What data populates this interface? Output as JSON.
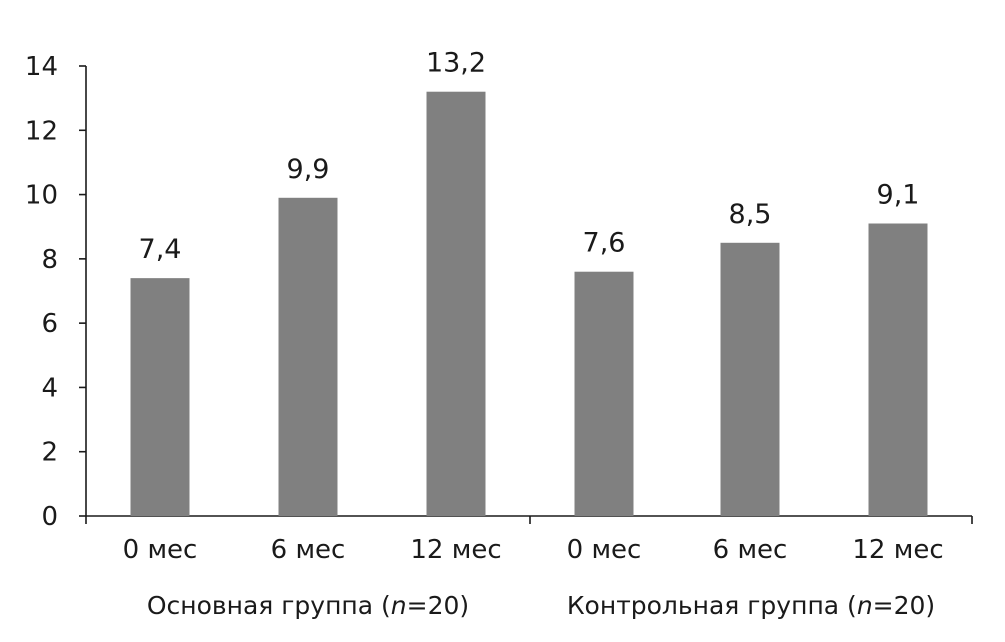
{
  "chart_data": {
    "type": "bar",
    "title": "",
    "xlabel": "",
    "ylabel": "",
    "ylim": [
      0,
      14
    ],
    "yticks": [
      0,
      2,
      4,
      6,
      8,
      10,
      12,
      14
    ],
    "grid": false,
    "legend": "none",
    "bar_color": "#808080",
    "groups": [
      {
        "label_prefix": "Основная группа (",
        "label_n": "n",
        "label_suffix": "=20)",
        "categories": [
          "0 мес",
          "6 мес",
          "12 мес"
        ],
        "values": [
          7.4,
          9.9,
          13.2
        ],
        "value_labels": [
          "7,4",
          "9,9",
          "13,2"
        ]
      },
      {
        "label_prefix": "Контрольная группа (",
        "label_n": "n",
        "label_suffix": "=20)",
        "categories": [
          "0 мес",
          "6 мес",
          "12 мес"
        ],
        "values": [
          7.6,
          8.5,
          9.1
        ],
        "value_labels": [
          "7,6",
          "8,5",
          "9,1"
        ]
      }
    ]
  }
}
